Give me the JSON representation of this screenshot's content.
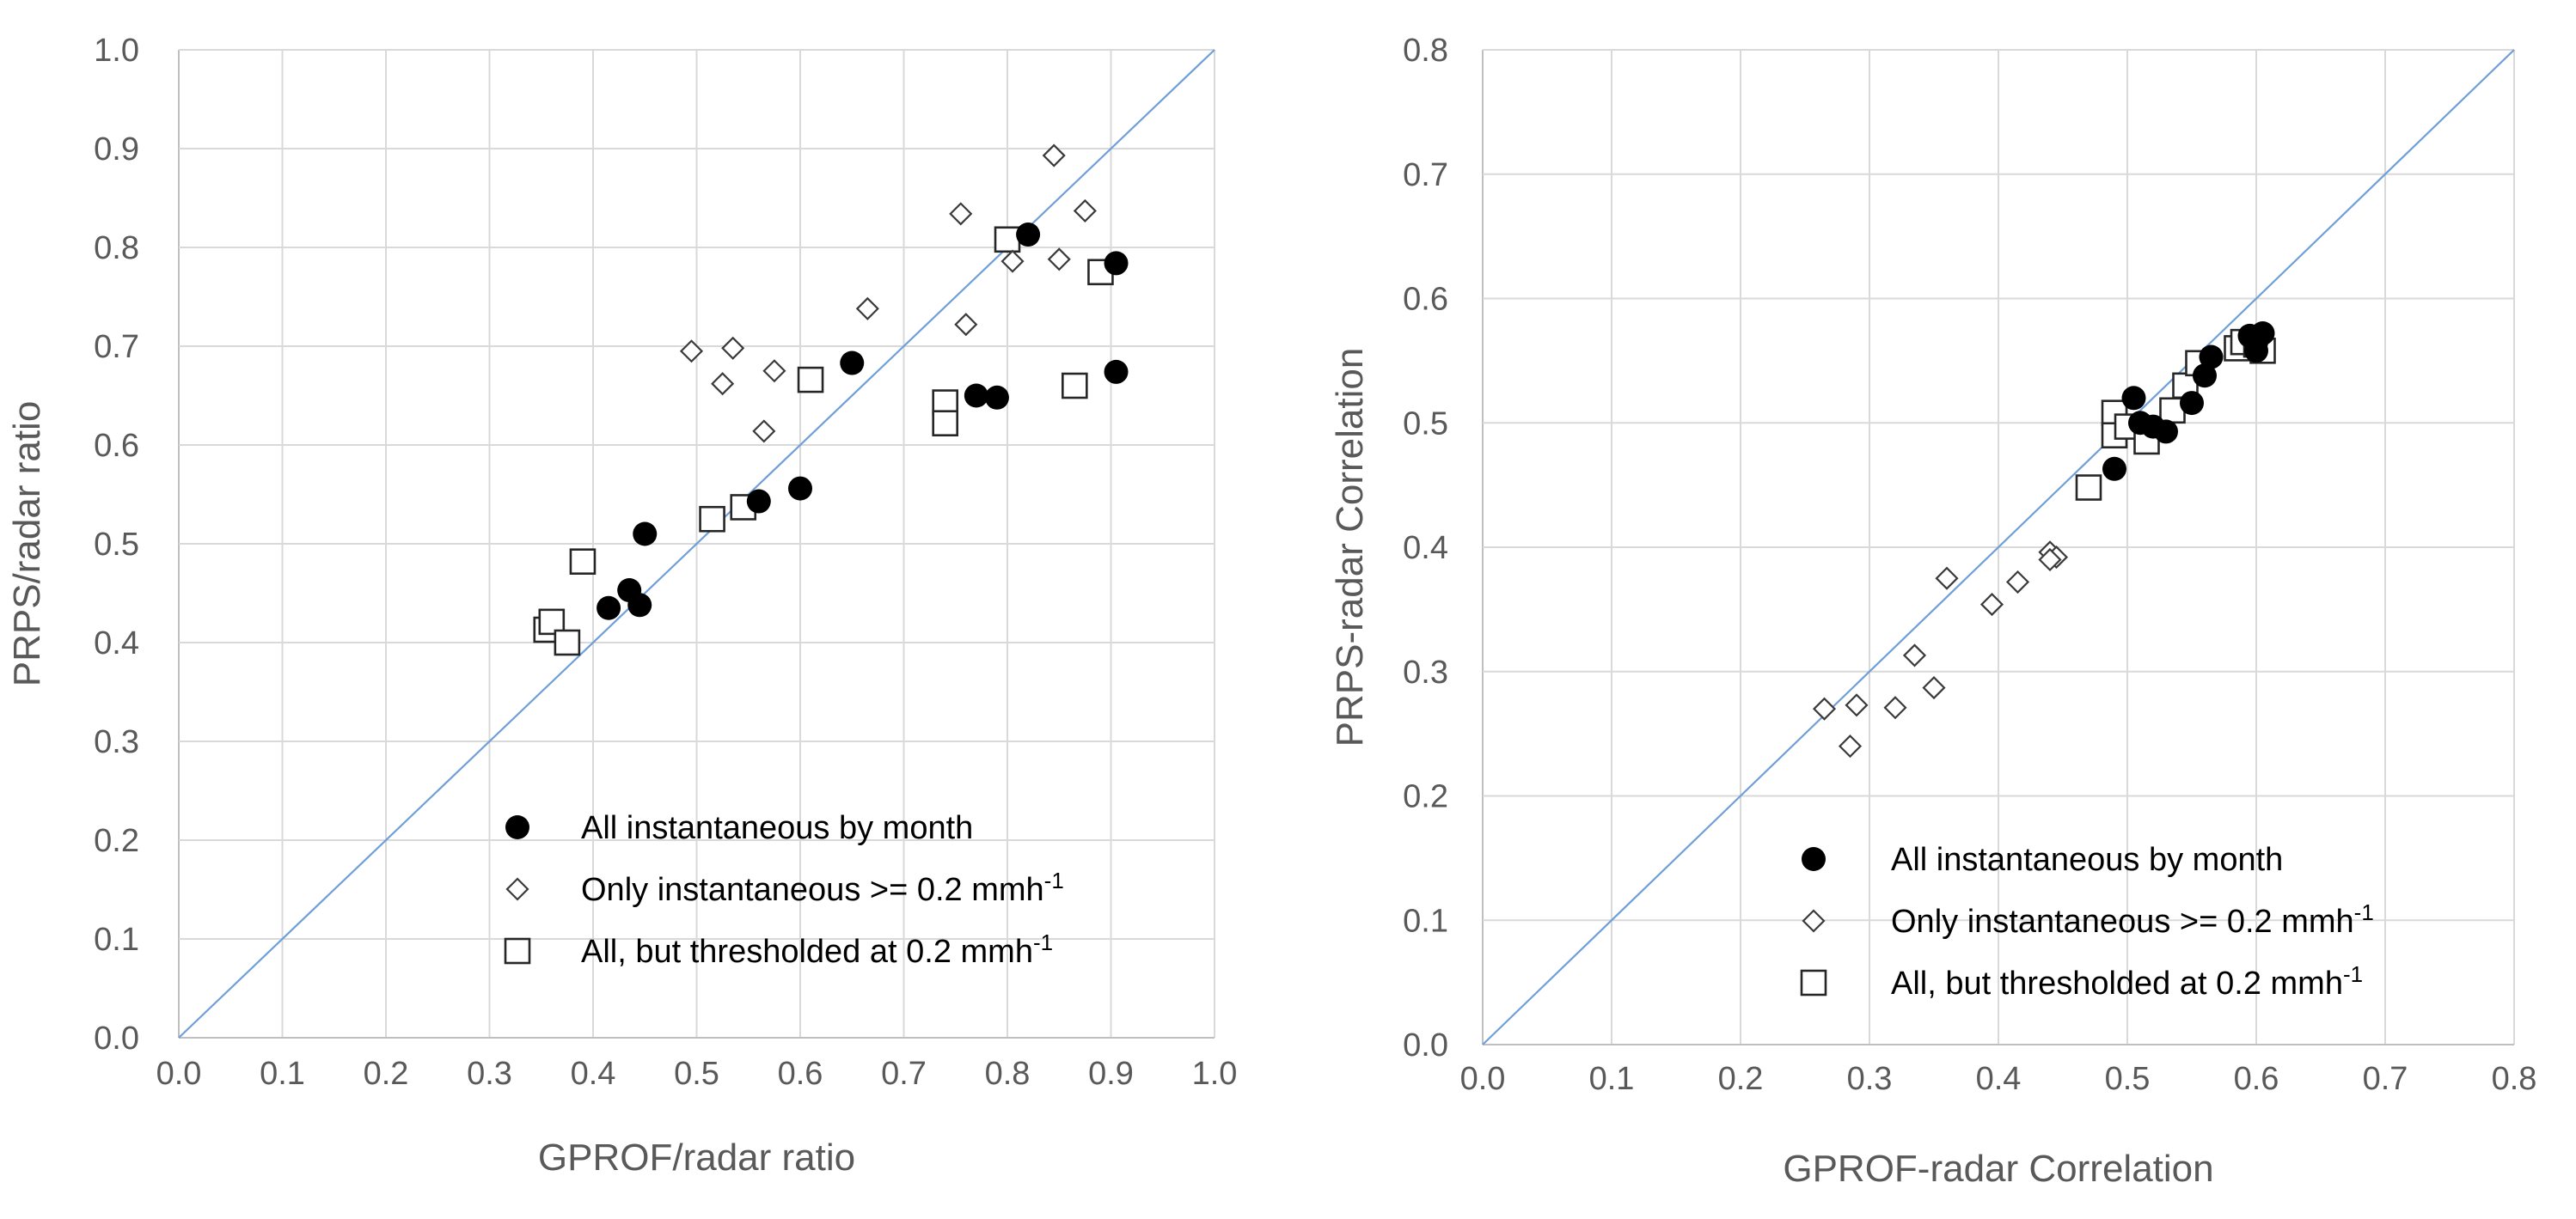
{
  "chart_data": [
    {
      "type": "scatter",
      "xlabel": "GPROF/radar ratio",
      "ylabel": "PRPS/radar ratio",
      "xlim": [
        0.0,
        1.0
      ],
      "ylim": [
        0.0,
        1.0
      ],
      "xticks": [
        "0.0",
        "0.1",
        "0.2",
        "0.3",
        "0.4",
        "0.5",
        "0.6",
        "0.7",
        "0.8",
        "0.9",
        "1.0"
      ],
      "yticks": [
        "0.0",
        "0.1",
        "0.2",
        "0.3",
        "0.4",
        "0.5",
        "0.6",
        "0.7",
        "0.8",
        "0.9",
        "1.0"
      ],
      "grid": true,
      "reference_line": "1:1",
      "legend_position": "bottom-right",
      "series": [
        {
          "name": "All instantaneous by month",
          "marker": "filled-circle",
          "points": [
            [
              0.45,
              0.51
            ],
            [
              0.435,
              0.453
            ],
            [
              0.415,
              0.435
            ],
            [
              0.445,
              0.438
            ],
            [
              0.56,
              0.543
            ],
            [
              0.6,
              0.556
            ],
            [
              0.65,
              0.683
            ],
            [
              0.77,
              0.65
            ],
            [
              0.79,
              0.648
            ],
            [
              0.82,
              0.813
            ],
            [
              0.905,
              0.784
            ],
            [
              0.905,
              0.674
            ]
          ]
        },
        {
          "name": "Only instantaneous >= 0.2 mmh",
          "superscript": "-1",
          "marker": "open-diamond",
          "points": [
            [
              0.495,
              0.695
            ],
            [
              0.535,
              0.698
            ],
            [
              0.525,
              0.662
            ],
            [
              0.575,
              0.675
            ],
            [
              0.565,
              0.614
            ],
            [
              0.665,
              0.738
            ],
            [
              0.755,
              0.834
            ],
            [
              0.76,
              0.722
            ],
            [
              0.805,
              0.786
            ],
            [
              0.845,
              0.893
            ],
            [
              0.85,
              0.788
            ],
            [
              0.875,
              0.837
            ]
          ]
        },
        {
          "name": "All, but thresholded at 0.2 mmh",
          "superscript": "-1",
          "marker": "open-square",
          "points": [
            [
              0.355,
              0.413
            ],
            [
              0.36,
              0.421
            ],
            [
              0.375,
              0.4
            ],
            [
              0.39,
              0.482
            ],
            [
              0.515,
              0.525
            ],
            [
              0.545,
              0.537
            ],
            [
              0.61,
              0.666
            ],
            [
              0.74,
              0.643
            ],
            [
              0.74,
              0.622
            ],
            [
              0.8,
              0.808
            ],
            [
              0.865,
              0.66
            ],
            [
              0.89,
              0.775
            ]
          ]
        }
      ]
    },
    {
      "type": "scatter",
      "xlabel": "GPROF-radar Correlation",
      "ylabel": "PRPS-radar Correlation",
      "xlim": [
        0.0,
        0.8
      ],
      "ylim": [
        0.0,
        0.8
      ],
      "xticks": [
        "0.0",
        "0.1",
        "0.2",
        "0.3",
        "0.4",
        "0.5",
        "0.6",
        "0.7",
        "0.8"
      ],
      "yticks": [
        "0.0",
        "0.1",
        "0.2",
        "0.3",
        "0.4",
        "0.5",
        "0.6",
        "0.7",
        "0.8"
      ],
      "grid": true,
      "reference_line": "1:1",
      "legend_position": "bottom-right",
      "series": [
        {
          "name": "All instantaneous by month",
          "marker": "filled-circle",
          "points": [
            [
              0.49,
              0.463
            ],
            [
              0.505,
              0.52
            ],
            [
              0.51,
              0.5
            ],
            [
              0.52,
              0.497
            ],
            [
              0.53,
              0.493
            ],
            [
              0.55,
              0.516
            ],
            [
              0.56,
              0.538
            ],
            [
              0.565,
              0.553
            ],
            [
              0.595,
              0.57
            ],
            [
              0.6,
              0.565
            ],
            [
              0.605,
              0.572
            ],
            [
              0.6,
              0.558
            ]
          ]
        },
        {
          "name": "Only instantaneous >= 0.2 mmh",
          "superscript": "-1",
          "marker": "open-diamond",
          "points": [
            [
              0.265,
              0.27
            ],
            [
              0.285,
              0.24
            ],
            [
              0.29,
              0.273
            ],
            [
              0.32,
              0.271
            ],
            [
              0.335,
              0.313
            ],
            [
              0.35,
              0.287
            ],
            [
              0.36,
              0.375
            ],
            [
              0.395,
              0.354
            ],
            [
              0.415,
              0.372
            ],
            [
              0.44,
              0.396
            ],
            [
              0.445,
              0.392
            ],
            [
              0.44,
              0.39
            ]
          ]
        },
        {
          "name": "All, but thresholded at 0.2 mmh",
          "superscript": "-1",
          "marker": "open-square",
          "points": [
            [
              0.47,
              0.448
            ],
            [
              0.49,
              0.508
            ],
            [
              0.49,
              0.49
            ],
            [
              0.5,
              0.497
            ],
            [
              0.515,
              0.485
            ],
            [
              0.535,
              0.51
            ],
            [
              0.545,
              0.53
            ],
            [
              0.555,
              0.548
            ],
            [
              0.585,
              0.56
            ],
            [
              0.59,
              0.565
            ],
            [
              0.6,
              0.563
            ],
            [
              0.605,
              0.558
            ]
          ]
        }
      ]
    }
  ]
}
